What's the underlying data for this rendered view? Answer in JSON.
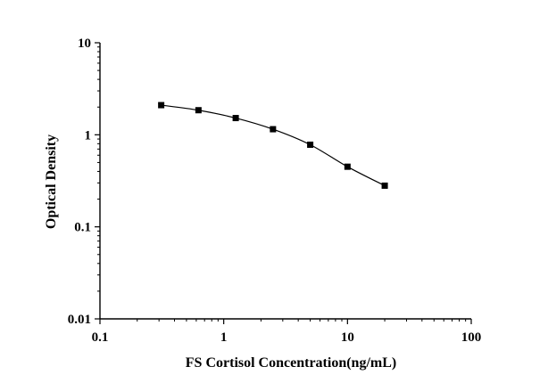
{
  "chart_data": {
    "type": "line",
    "title": "",
    "xlabel": "FS Cortisol Concentration(ng/mL)",
    "ylabel": "Optical Density",
    "x_scale": "log",
    "y_scale": "log",
    "xlim": [
      0.1,
      100
    ],
    "ylim": [
      0.01,
      10
    ],
    "x_ticks": [
      {
        "value": 0.1,
        "label": "0.1"
      },
      {
        "value": 1,
        "label": "1"
      },
      {
        "value": 10,
        "label": "10"
      },
      {
        "value": 100,
        "label": "100"
      }
    ],
    "y_ticks": [
      {
        "value": 0.01,
        "label": "0.01"
      },
      {
        "value": 0.1,
        "label": "0.1"
      },
      {
        "value": 1,
        "label": "1"
      },
      {
        "value": 10,
        "label": "10"
      }
    ],
    "grid": false,
    "legend": "none",
    "series": [
      {
        "marker": "square",
        "color": "#000000",
        "x": [
          0.3125,
          0.625,
          1.25,
          2.5,
          5,
          10,
          20
        ],
        "y": [
          2.1,
          1.85,
          1.52,
          1.15,
          0.78,
          0.45,
          0.28
        ]
      }
    ]
  }
}
